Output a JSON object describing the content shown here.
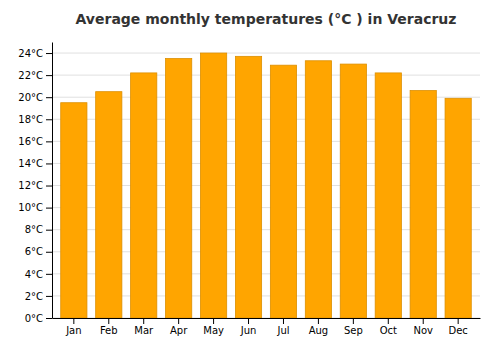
{
  "chart_data": {
    "type": "bar",
    "title": "Average monthly temperatures (°C ) in Veracruz",
    "categories": [
      "Jan",
      "Feb",
      "Mar",
      "Apr",
      "May",
      "Jun",
      "Jul",
      "Aug",
      "Sep",
      "Oct",
      "Nov",
      "Dec"
    ],
    "values": [
      19.5,
      20.5,
      22.2,
      23.5,
      24.0,
      23.7,
      22.9,
      23.3,
      23.0,
      22.2,
      20.6,
      19.9
    ],
    "color": "#FFA500",
    "ylim": [
      0,
      25
    ],
    "yticks": [
      {
        "value": 0,
        "label": "0°C"
      },
      {
        "value": 2,
        "label": "2°C"
      },
      {
        "value": 4,
        "label": "4°C"
      },
      {
        "value": 6,
        "label": "6°C"
      },
      {
        "value": 8,
        "label": "8°C"
      },
      {
        "value": 10,
        "label": "10°C"
      },
      {
        "value": 12,
        "label": "12°C"
      },
      {
        "value": 14,
        "label": "14°C"
      },
      {
        "value": 16,
        "label": "16°C"
      },
      {
        "value": 18,
        "label": "18°C"
      },
      {
        "value": 20,
        "label": "20°C"
      },
      {
        "value": 22,
        "label": "22°C"
      },
      {
        "value": 24,
        "label": "24°C"
      }
    ],
    "grid": true
  }
}
